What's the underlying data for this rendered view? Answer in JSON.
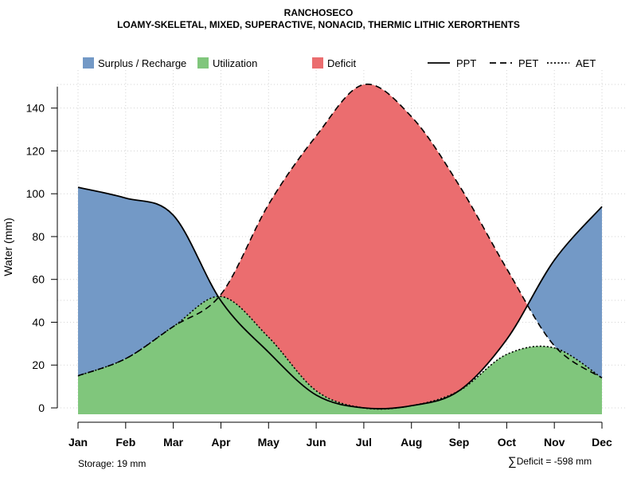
{
  "title": "RANCHOSECO",
  "subtitle": "LOAMY-SKELETAL, MIXED, SUPERACTIVE, NONACID, THERMIC LITHIC XERORTHENTS",
  "footer": {
    "storage": "Storage: 19 mm",
    "deficit_symbol": "∑",
    "deficit": "Deficit = -598 mm"
  },
  "colors": {
    "surplus": "#7399c6",
    "utilization": "#80c67c",
    "deficit": "#eb6d6f",
    "line": "#000000",
    "grid": "#d3d3d3"
  },
  "chart_data": {
    "type": "area",
    "xlabel": "",
    "ylabel": "Water (mm)",
    "ylim": [
      0,
      155
    ],
    "yticks": [
      0,
      20,
      40,
      60,
      80,
      100,
      120,
      140
    ],
    "grid": true,
    "months": [
      "Jan",
      "Feb",
      "Mar",
      "Apr",
      "May",
      "Jun",
      "Jul",
      "Aug",
      "Sep",
      "Oct",
      "Nov",
      "Dec"
    ],
    "series": [
      {
        "name": "PPT",
        "line_style": "solid",
        "values": [
          103,
          98,
          90,
          50,
          26,
          6,
          0,
          1,
          8,
          32,
          69,
          94
        ]
      },
      {
        "name": "PET",
        "line_style": "dashed",
        "values": [
          15,
          23,
          38,
          53,
          95,
          127,
          151,
          136,
          104,
          65,
          29,
          14
        ]
      },
      {
        "name": "AET",
        "line_style": "dotted",
        "values": [
          15,
          23,
          38,
          52,
          33,
          8,
          0,
          1,
          8,
          25,
          28,
          14
        ]
      }
    ],
    "legend": {
      "position": "top",
      "areas": [
        {
          "label": "Surplus / Recharge",
          "color": "#7399c6"
        },
        {
          "label": "Utilization",
          "color": "#80c67c"
        },
        {
          "label": "Deficit",
          "color": "#eb6d6f"
        }
      ],
      "lines": [
        {
          "label": "PPT",
          "style": "solid"
        },
        {
          "label": "PET",
          "style": "dashed"
        },
        {
          "label": "AET",
          "style": "dotted"
        }
      ]
    }
  }
}
